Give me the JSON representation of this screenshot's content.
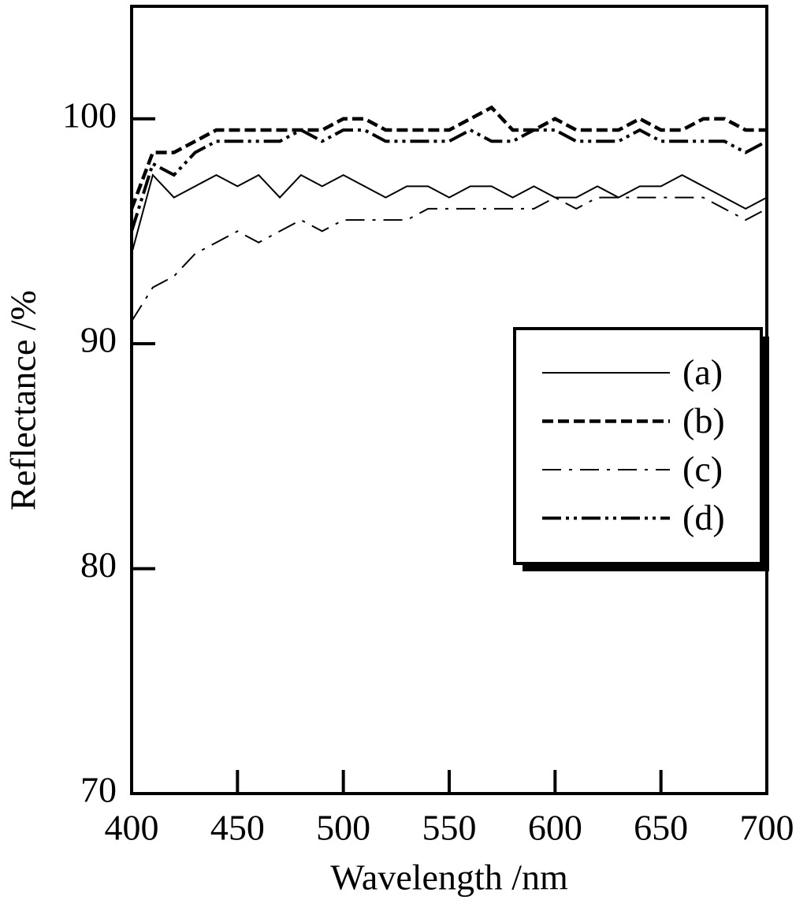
{
  "chart_data": {
    "type": "line",
    "x_label": "Wavelength /nm",
    "y_label": "Reflectance /%",
    "x": [
      400,
      410,
      420,
      430,
      440,
      450,
      460,
      470,
      480,
      490,
      500,
      510,
      520,
      530,
      540,
      550,
      560,
      570,
      580,
      590,
      600,
      610,
      620,
      630,
      640,
      650,
      660,
      670,
      680,
      690,
      700
    ],
    "series": [
      {
        "name": "(a)",
        "color": "#000000",
        "dash": "solid",
        "width": 2,
        "values": [
          94,
          97.5,
          96.5,
          97,
          97.5,
          97,
          97.5,
          96.5,
          97.5,
          97,
          97.5,
          97,
          96.5,
          97,
          97,
          96.5,
          97,
          97,
          96.5,
          97,
          96.5,
          96.5,
          97,
          96.5,
          97,
          97,
          97.5,
          97,
          96.5,
          96,
          96.5
        ]
      },
      {
        "name": "(b)",
        "color": "#000000",
        "dash": "dash",
        "width": 4.5,
        "values": [
          96,
          98.5,
          98.5,
          99,
          99.5,
          99.5,
          99.5,
          99.5,
          99.5,
          99.5,
          100,
          100,
          99.5,
          99.5,
          99.5,
          99.5,
          100,
          100.5,
          99.5,
          99.5,
          100,
          99.5,
          99.5,
          99.5,
          100,
          99.5,
          99.5,
          100,
          100,
          99.5,
          99.5
        ]
      },
      {
        "name": "(c)",
        "color": "#000000",
        "dash": "dashdot",
        "width": 2,
        "values": [
          91,
          92.5,
          93,
          94,
          94.5,
          95,
          94.5,
          95,
          95.5,
          95,
          95.5,
          95.5,
          95.5,
          95.5,
          96,
          96,
          96,
          96,
          96,
          96,
          96.5,
          96,
          96.5,
          96.5,
          96.5,
          96.5,
          96.5,
          96.5,
          96,
          95.5,
          96
        ]
      },
      {
        "name": "(d)",
        "color": "#000000",
        "dash": "dashdotdot",
        "width": 4,
        "values": [
          95,
          98,
          97.5,
          98.5,
          99,
          99,
          99,
          99,
          99.5,
          99,
          99.5,
          99.5,
          99,
          99,
          99,
          99,
          99.5,
          99,
          99,
          99.5,
          99.5,
          99,
          99,
          99,
          99.5,
          99,
          99,
          99,
          99,
          98.5,
          99
        ]
      }
    ],
    "xlim": [
      400,
      700
    ],
    "xticks": [
      400,
      450,
      500,
      550,
      600,
      650,
      700
    ],
    "ylim": [
      70,
      105
    ],
    "yticks": [
      70,
      80,
      90,
      100
    ],
    "legend": "right"
  }
}
